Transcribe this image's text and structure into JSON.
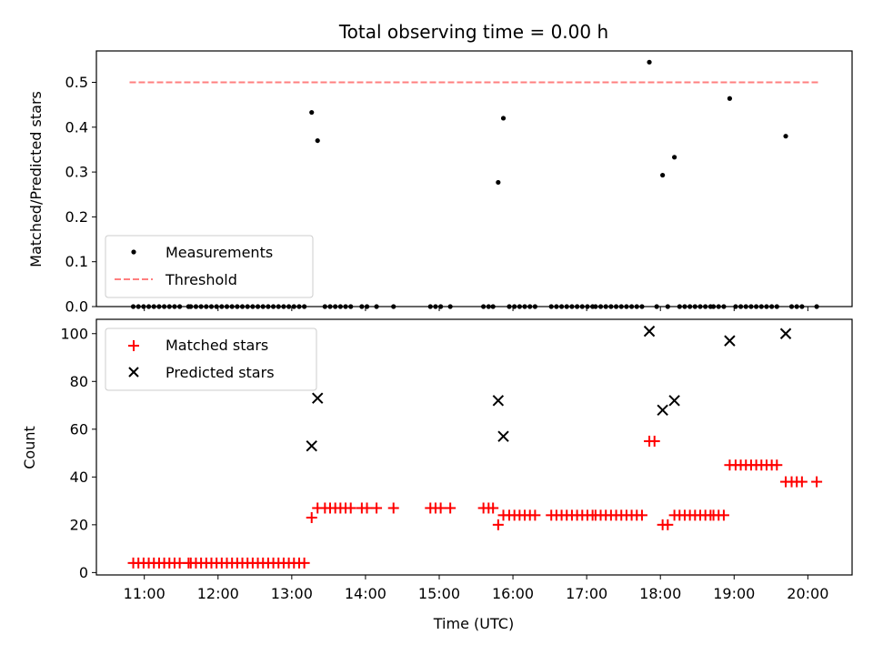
{
  "title": "Total observing time = 0.00 h",
  "top": {
    "type": "scatter",
    "ylabel": "Matched/Predicted stars",
    "ylim": [
      0,
      0.57
    ],
    "yticks": [
      0.0,
      0.1,
      0.2,
      0.3,
      0.4,
      0.5
    ],
    "ytick_labels": [
      "0.0",
      "0.1",
      "0.2",
      "0.3",
      "0.4",
      "0.5"
    ],
    "threshold": {
      "value": 0.5,
      "x_start": 10.8,
      "x_end": 20.15,
      "color": "#ff7f7f"
    },
    "legend": {
      "position": "lower-left",
      "entries": [
        {
          "label": "Measurements",
          "marker": "dot",
          "color": "#000000"
        },
        {
          "label": "Threshold",
          "marker": "dashed-line",
          "color": "#ff7f7f"
        }
      ]
    },
    "measurements": [
      [
        10.85,
        0
      ],
      [
        10.92,
        0
      ],
      [
        10.99,
        0
      ],
      [
        11.06,
        0
      ],
      [
        11.13,
        0
      ],
      [
        11.2,
        0
      ],
      [
        11.27,
        0
      ],
      [
        11.34,
        0
      ],
      [
        11.41,
        0
      ],
      [
        11.48,
        0
      ],
      [
        11.6,
        0
      ],
      [
        11.63,
        0
      ],
      [
        11.7,
        0
      ],
      [
        11.77,
        0
      ],
      [
        11.84,
        0
      ],
      [
        11.91,
        0
      ],
      [
        11.98,
        0
      ],
      [
        12.05,
        0
      ],
      [
        12.12,
        0
      ],
      [
        12.19,
        0
      ],
      [
        12.26,
        0
      ],
      [
        12.33,
        0
      ],
      [
        12.4,
        0
      ],
      [
        12.47,
        0
      ],
      [
        12.54,
        0
      ],
      [
        12.61,
        0
      ],
      [
        12.68,
        0
      ],
      [
        12.75,
        0
      ],
      [
        12.82,
        0
      ],
      [
        12.89,
        0
      ],
      [
        12.96,
        0
      ],
      [
        13.03,
        0
      ],
      [
        13.1,
        0
      ],
      [
        13.17,
        0
      ],
      [
        13.27,
        0.433
      ],
      [
        13.35,
        0.37
      ],
      [
        13.45,
        0
      ],
      [
        13.52,
        0
      ],
      [
        13.59,
        0
      ],
      [
        13.66,
        0
      ],
      [
        13.73,
        0
      ],
      [
        13.8,
        0
      ],
      [
        13.95,
        0
      ],
      [
        14.02,
        0
      ],
      [
        14.15,
        0
      ],
      [
        14.38,
        0
      ],
      [
        14.88,
        0
      ],
      [
        14.95,
        0
      ],
      [
        15.02,
        0
      ],
      [
        15.15,
        0
      ],
      [
        15.6,
        0
      ],
      [
        15.67,
        0
      ],
      [
        15.73,
        0
      ],
      [
        15.8,
        0.277
      ],
      [
        15.87,
        0.42
      ],
      [
        15.95,
        0
      ],
      [
        16.02,
        0
      ],
      [
        16.09,
        0
      ],
      [
        16.16,
        0
      ],
      [
        16.23,
        0
      ],
      [
        16.3,
        0
      ],
      [
        16.52,
        0
      ],
      [
        16.59,
        0
      ],
      [
        16.66,
        0
      ],
      [
        16.73,
        0
      ],
      [
        16.8,
        0
      ],
      [
        16.87,
        0
      ],
      [
        16.94,
        0
      ],
      [
        17.01,
        0
      ],
      [
        17.08,
        0
      ],
      [
        17.12,
        0
      ],
      [
        17.19,
        0
      ],
      [
        17.26,
        0
      ],
      [
        17.33,
        0
      ],
      [
        17.4,
        0
      ],
      [
        17.47,
        0
      ],
      [
        17.54,
        0
      ],
      [
        17.61,
        0
      ],
      [
        17.68,
        0
      ],
      [
        17.75,
        0
      ],
      [
        17.85,
        0.545
      ],
      [
        17.95,
        0
      ],
      [
        18.03,
        0.293
      ],
      [
        18.1,
        0
      ],
      [
        18.19,
        0.333
      ],
      [
        18.26,
        0
      ],
      [
        18.33,
        0
      ],
      [
        18.4,
        0
      ],
      [
        18.47,
        0
      ],
      [
        18.54,
        0
      ],
      [
        18.61,
        0
      ],
      [
        18.68,
        0
      ],
      [
        18.72,
        0
      ],
      [
        18.79,
        0
      ],
      [
        18.86,
        0
      ],
      [
        18.94,
        0.464
      ],
      [
        19.02,
        0
      ],
      [
        19.09,
        0
      ],
      [
        19.16,
        0
      ],
      [
        19.23,
        0
      ],
      [
        19.3,
        0
      ],
      [
        19.37,
        0
      ],
      [
        19.44,
        0
      ],
      [
        19.51,
        0
      ],
      [
        19.58,
        0
      ],
      [
        19.7,
        0.38
      ],
      [
        19.78,
        0
      ],
      [
        19.85,
        0
      ],
      [
        19.92,
        0
      ],
      [
        20.12,
        0
      ]
    ]
  },
  "bottom": {
    "type": "scatter",
    "xlabel": "Time (UTC)",
    "ylabel": "Count",
    "xlim": [
      10.35,
      20.6
    ],
    "ylim": [
      -1,
      106
    ],
    "xticks": [
      11,
      12,
      13,
      14,
      15,
      16,
      17,
      18,
      19,
      20
    ],
    "xtick_labels": [
      "11:00",
      "12:00",
      "13:00",
      "14:00",
      "15:00",
      "16:00",
      "17:00",
      "18:00",
      "19:00",
      "20:00"
    ],
    "yticks": [
      0,
      20,
      40,
      60,
      80,
      100
    ],
    "ytick_labels": [
      "0",
      "20",
      "40",
      "60",
      "80",
      "100"
    ],
    "legend": {
      "position": "upper-left",
      "entries": [
        {
          "label": "Matched stars",
          "marker": "plus",
          "color": "#ff0000"
        },
        {
          "label": "Predicted stars",
          "marker": "x",
          "color": "#000000"
        }
      ]
    },
    "matched": [
      [
        10.85,
        4
      ],
      [
        10.92,
        4
      ],
      [
        10.99,
        4
      ],
      [
        11.06,
        4
      ],
      [
        11.13,
        4
      ],
      [
        11.2,
        4
      ],
      [
        11.27,
        4
      ],
      [
        11.34,
        4
      ],
      [
        11.41,
        4
      ],
      [
        11.48,
        4
      ],
      [
        11.6,
        4
      ],
      [
        11.63,
        4
      ],
      [
        11.7,
        4
      ],
      [
        11.77,
        4
      ],
      [
        11.84,
        4
      ],
      [
        11.91,
        4
      ],
      [
        11.98,
        4
      ],
      [
        12.05,
        4
      ],
      [
        12.12,
        4
      ],
      [
        12.19,
        4
      ],
      [
        12.26,
        4
      ],
      [
        12.33,
        4
      ],
      [
        12.4,
        4
      ],
      [
        12.47,
        4
      ],
      [
        12.54,
        4
      ],
      [
        12.61,
        4
      ],
      [
        12.68,
        4
      ],
      [
        12.75,
        4
      ],
      [
        12.82,
        4
      ],
      [
        12.89,
        4
      ],
      [
        12.96,
        4
      ],
      [
        13.03,
        4
      ],
      [
        13.1,
        4
      ],
      [
        13.17,
        4
      ],
      [
        13.27,
        23
      ],
      [
        13.35,
        27
      ],
      [
        13.45,
        27
      ],
      [
        13.52,
        27
      ],
      [
        13.59,
        27
      ],
      [
        13.66,
        27
      ],
      [
        13.73,
        27
      ],
      [
        13.8,
        27
      ],
      [
        13.95,
        27
      ],
      [
        14.02,
        27
      ],
      [
        14.15,
        27
      ],
      [
        14.38,
        27
      ],
      [
        14.88,
        27
      ],
      [
        14.95,
        27
      ],
      [
        15.02,
        27
      ],
      [
        15.15,
        27
      ],
      [
        15.6,
        27
      ],
      [
        15.67,
        27
      ],
      [
        15.73,
        27
      ],
      [
        15.8,
        20
      ],
      [
        15.87,
        24
      ],
      [
        15.95,
        24
      ],
      [
        16.02,
        24
      ],
      [
        16.09,
        24
      ],
      [
        16.16,
        24
      ],
      [
        16.23,
        24
      ],
      [
        16.3,
        24
      ],
      [
        16.52,
        24
      ],
      [
        16.59,
        24
      ],
      [
        16.66,
        24
      ],
      [
        16.73,
        24
      ],
      [
        16.8,
        24
      ],
      [
        16.87,
        24
      ],
      [
        16.94,
        24
      ],
      [
        17.01,
        24
      ],
      [
        17.08,
        24
      ],
      [
        17.12,
        24
      ],
      [
        17.19,
        24
      ],
      [
        17.26,
        24
      ],
      [
        17.33,
        24
      ],
      [
        17.4,
        24
      ],
      [
        17.47,
        24
      ],
      [
        17.54,
        24
      ],
      [
        17.61,
        24
      ],
      [
        17.68,
        24
      ],
      [
        17.75,
        24
      ],
      [
        17.85,
        55
      ],
      [
        17.92,
        55
      ],
      [
        18.03,
        20
      ],
      [
        18.1,
        20
      ],
      [
        18.19,
        24
      ],
      [
        18.26,
        24
      ],
      [
        18.33,
        24
      ],
      [
        18.4,
        24
      ],
      [
        18.47,
        24
      ],
      [
        18.54,
        24
      ],
      [
        18.61,
        24
      ],
      [
        18.68,
        24
      ],
      [
        18.72,
        24
      ],
      [
        18.79,
        24
      ],
      [
        18.86,
        24
      ],
      [
        18.94,
        45
      ],
      [
        19.02,
        45
      ],
      [
        19.09,
        45
      ],
      [
        19.16,
        45
      ],
      [
        19.23,
        45
      ],
      [
        19.3,
        45
      ],
      [
        19.37,
        45
      ],
      [
        19.44,
        45
      ],
      [
        19.51,
        45
      ],
      [
        19.58,
        45
      ],
      [
        19.7,
        38
      ],
      [
        19.78,
        38
      ],
      [
        19.85,
        38
      ],
      [
        19.92,
        38
      ],
      [
        20.12,
        38
      ]
    ],
    "predicted": [
      [
        13.27,
        53
      ],
      [
        13.35,
        73
      ],
      [
        15.8,
        72
      ],
      [
        15.87,
        57
      ],
      [
        17.85,
        101
      ],
      [
        18.03,
        68
      ],
      [
        18.19,
        72
      ],
      [
        18.94,
        97
      ],
      [
        19.7,
        100
      ]
    ]
  }
}
